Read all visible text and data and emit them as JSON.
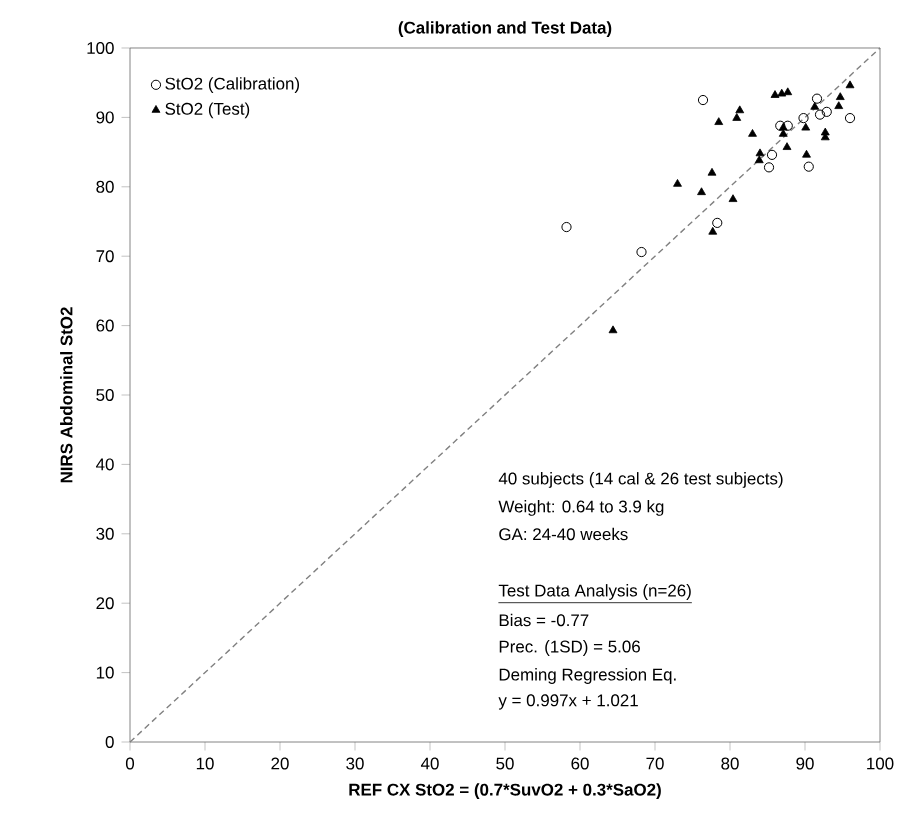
{
  "chart_data": {
    "type": "scatter",
    "title": "(Calibration and Test Data)",
    "xlabel": "REF CX StO2 = (0.7*SuvO2 + 0.3*SaO2)",
    "ylabel": "NIRS Abdominal StO2",
    "xlim": [
      0,
      100
    ],
    "ylim": [
      0,
      100
    ],
    "xticks": [
      0,
      10,
      20,
      30,
      40,
      50,
      60,
      70,
      80,
      90,
      100
    ],
    "yticks": [
      0,
      10,
      20,
      30,
      40,
      50,
      60,
      70,
      80,
      90,
      100
    ],
    "legend": "top left",
    "grid": false,
    "series": [
      {
        "name": "StO2 (Calibration)",
        "color": "#000000",
        "marker": "circle",
        "x": [
          58.2,
          68.2,
          76.4,
          78.3,
          85.2,
          85.6,
          86.7,
          87.7,
          89.8,
          91.6,
          92.0,
          92.9,
          96.0,
          90.5
        ],
        "values": [
          74.2,
          70.6,
          92.5,
          74.8,
          82.8,
          84.6,
          88.8,
          88.8,
          89.9,
          92.7,
          90.4,
          90.8,
          89.9,
          82.9
        ]
      },
      {
        "name": "StO2 (Test)",
        "color": "#000000",
        "marker": "triangle",
        "x": [
          64.4,
          73.0,
          76.2,
          77.6,
          80.4,
          77.7,
          78.5,
          80.9,
          81.3,
          83.0,
          84.0,
          83.9,
          86.0,
          86.9,
          87.7,
          87.1,
          87.6,
          90.1,
          90.2,
          92.7,
          92.7,
          91.3,
          94.5,
          94.7,
          96.0,
          87.1
        ],
        "values": [
          59.3,
          80.4,
          79.2,
          82.0,
          78.2,
          73.5,
          89.3,
          89.9,
          91.0,
          87.6,
          84.8,
          83.8,
          93.2,
          93.4,
          93.6,
          87.6,
          85.7,
          88.5,
          84.6,
          87.8,
          87.1,
          91.5,
          91.6,
          92.9,
          94.6,
          88.5
        ]
      },
      {
        "type": "line",
        "color": "#808080",
        "line_style": "dashed",
        "marker": "none",
        "x": [
          0,
          100
        ],
        "values": [
          0,
          100
        ]
      }
    ],
    "annotations": [
      "40 subjects (14 cal & 26 test subjects)",
      "Weight: 0.64 to 3.9 kg",
      "GA: 24-40 weeks",
      "Test Data Analysis (n=26)",
      "Bias = -0.77",
      "Prec. (1SD) = 5.06",
      "Deming Regression Eq.",
      "y = 0.997x + 1.021"
    ]
  }
}
